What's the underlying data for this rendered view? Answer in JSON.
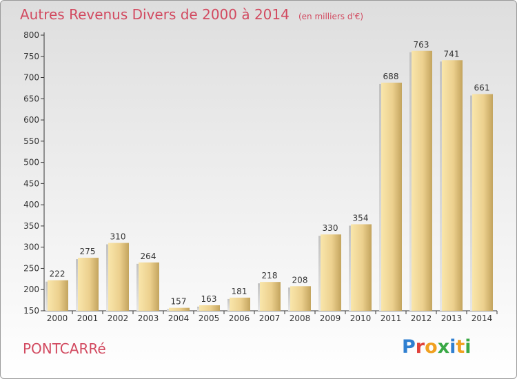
{
  "chart_data": {
    "type": "bar",
    "title": "Autres Revenus Divers de 2000 à 2014",
    "unit": "(en milliers d'€)",
    "categories": [
      "2000",
      "2001",
      "2002",
      "2003",
      "2004",
      "2005",
      "2006",
      "2007",
      "2008",
      "2009",
      "2010",
      "2011",
      "2012",
      "2013",
      "2014"
    ],
    "values": [
      222,
      275,
      310,
      264,
      157,
      163,
      181,
      218,
      208,
      330,
      354,
      688,
      763,
      741,
      661
    ],
    "ylim": [
      150,
      800
    ],
    "yticks": [
      150,
      200,
      250,
      300,
      350,
      400,
      450,
      500,
      550,
      600,
      650,
      700,
      750,
      800
    ],
    "xlabel": "",
    "ylabel": "",
    "grid": false
  },
  "footer": {
    "commune": "PONTCARRé",
    "logo_text": "Proxiti",
    "logo_colors": [
      "#2f7fd0",
      "#e0413a",
      "#f0a020",
      "#39a845",
      "#2f7fd0",
      "#f0a020",
      "#39a845"
    ]
  },
  "colors": {
    "title": "#d24a60",
    "bar_light": "#f8e2a2",
    "bar_dark": "#c9ab62"
  }
}
